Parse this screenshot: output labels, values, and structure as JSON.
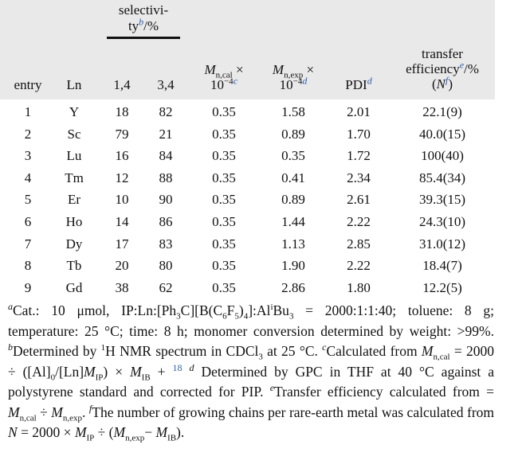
{
  "header": {
    "selectivity_l1": "selectivi-",
    "selectivity_l2": "ty",
    "sel_mark": "b",
    "sel_unit": "/%",
    "entry": "entry",
    "ln": "Ln",
    "c14": "1,4",
    "c34": "3,4",
    "mncal_M": "M",
    "mncal_sub": "n,cal",
    "times": "×",
    "ten": "10",
    "exp": "−4",
    "mncal_mark": "c",
    "mnexp_M": "M",
    "mnexp_sub": "n,exp",
    "mnexp_mark": "d",
    "pdi": "PDI",
    "pdi_mark": "d",
    "transfer_l1": "transfer",
    "transfer_l2": "efficiency",
    "transfer_mark": "e",
    "transfer_unit": "/%",
    "transfer_l3a": "(",
    "transfer_N": "N",
    "transfer_mark_f": "f",
    "transfer_l3b": ")"
  },
  "rows": [
    [
      "1",
      "Y",
      "18",
      "82",
      "0.35",
      "1.58",
      "2.01",
      "22.1(9)"
    ],
    [
      "2",
      "Sc",
      "79",
      "21",
      "0.35",
      "0.89",
      "1.70",
      "40.0(15)"
    ],
    [
      "3",
      "Lu",
      "16",
      "84",
      "0.35",
      "0.35",
      "1.72",
      "100(40)"
    ],
    [
      "4",
      "Tm",
      "12",
      "88",
      "0.35",
      "0.41",
      "2.34",
      "85.4(34)"
    ],
    [
      "5",
      "Er",
      "10",
      "90",
      "0.35",
      "0.89",
      "2.61",
      "39.3(15)"
    ],
    [
      "6",
      "Ho",
      "14",
      "86",
      "0.35",
      "1.44",
      "2.22",
      "24.3(10)"
    ],
    [
      "7",
      "Dy",
      "17",
      "83",
      "0.35",
      "1.13",
      "2.85",
      "31.0(12)"
    ],
    [
      "8",
      "Tb",
      "20",
      "80",
      "0.35",
      "1.90",
      "2.22",
      "18.4(7)"
    ],
    [
      "9",
      "Gd",
      "38",
      "62",
      "0.35",
      "2.86",
      "1.80",
      "12.2(5)"
    ]
  ],
  "notes": {
    "a_mark": "a",
    "a1": "Cat.: 10 μmol, IP:Ln:[Ph",
    "a_sub3": "3",
    "a2": "C][B(C",
    "a_sub6": "6",
    "a3": "F",
    "a_sub5": "5",
    "a4": ")",
    "a_sub4": "4",
    "a4b": "]:Al",
    "a_supi": "i",
    "a5": "Bu",
    "a_sub3b": "3",
    "a6": " = 2000:1:1:40; toluene: 8 g; temperature: 25 °C; time: 8 h; monomer conversion determined by weight: >99%. ",
    "b_mark": "b",
    "b1": "Determined by ",
    "b_sup1": "1",
    "b2": "H NMR spectrum in CDCl",
    "b_sub3": "3",
    "b3": " at 25 °C. ",
    "c_mark": "c",
    "c1": "Calculated from ",
    "M": "M",
    "N": "N",
    "sub_ncal": "n,cal",
    "sub_nexp": "n,exp",
    "sub_0": "0",
    "sub_IP": "IP",
    "sub_IB": "IB",
    "c2": " = 2000 ÷ ([Al]",
    "c3": "/[Ln]",
    "c4": ") × ",
    "c5": " + ",
    "ref18": "18",
    "d_mark": "d",
    "d1": " Determined by GPC in THF at 40 °C against a polystyrene standard and corrected for PIP. ",
    "e_mark": "e",
    "e1": "Transfer efficiency calculated from = ",
    "e2": " ÷ ",
    "e3": ". ",
    "f_mark": "f",
    "f1": "The number of growing chains per rare-earth metal was calculated from ",
    "f2": " = 2000 × ",
    "f3": " ÷ (",
    "f4": "− ",
    "f5": ")."
  }
}
